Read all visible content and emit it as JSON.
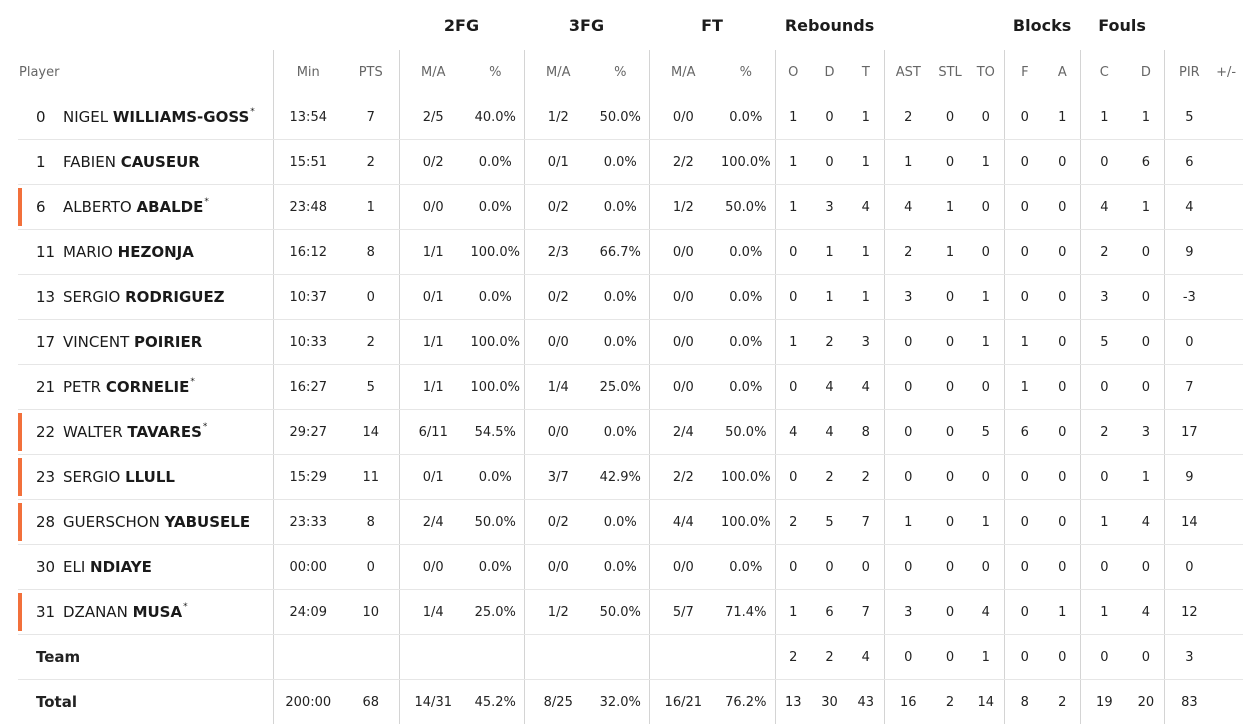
{
  "group_headers": {
    "fg2": "2FG",
    "fg3": "3FG",
    "ft": "FT",
    "rebounds": "Rebounds",
    "blocks": "Blocks",
    "fouls": "Fouls"
  },
  "columns": {
    "player": "Player",
    "min": "Min",
    "pts": "PTS",
    "fg2_ma": "M/A",
    "fg2_pct": "%",
    "fg3_ma": "M/A",
    "fg3_pct": "%",
    "ft_ma": "M/A",
    "ft_pct": "%",
    "reb_o": "O",
    "reb_d": "D",
    "reb_t": "T",
    "ast": "AST",
    "stl": "STL",
    "to": "TO",
    "blk_f": "F",
    "blk_a": "A",
    "foul_c": "C",
    "foul_d": "D",
    "pir": "PIR",
    "plusminus": "+/-"
  },
  "colors": {
    "starter_marker": "#f2703b",
    "divider": "#d4d4d4",
    "row_border": "#e6e6e6"
  },
  "players": [
    {
      "number": "0",
      "first": "NIGEL",
      "last": "WILLIAMS-GOSS",
      "star": "*",
      "marker": false,
      "min": "13:54",
      "pts": "7",
      "fg2_ma": "2/5",
      "fg2_pct": "40.0%",
      "fg3_ma": "1/2",
      "fg3_pct": "50.0%",
      "ft_ma": "0/0",
      "ft_pct": "0.0%",
      "reb_o": "1",
      "reb_d": "0",
      "reb_t": "1",
      "ast": "2",
      "stl": "0",
      "to": "0",
      "blk_f": "0",
      "blk_a": "1",
      "foul_c": "1",
      "foul_d": "1",
      "pir": "5"
    },
    {
      "number": "1",
      "first": "FABIEN",
      "last": "CAUSEUR",
      "star": "",
      "marker": false,
      "min": "15:51",
      "pts": "2",
      "fg2_ma": "0/2",
      "fg2_pct": "0.0%",
      "fg3_ma": "0/1",
      "fg3_pct": "0.0%",
      "ft_ma": "2/2",
      "ft_pct": "100.0%",
      "reb_o": "1",
      "reb_d": "0",
      "reb_t": "1",
      "ast": "1",
      "stl": "0",
      "to": "1",
      "blk_f": "0",
      "blk_a": "0",
      "foul_c": "0",
      "foul_d": "6",
      "pir": "6"
    },
    {
      "number": "6",
      "first": "ALBERTO",
      "last": "ABALDE",
      "star": "*",
      "marker": true,
      "min": "23:48",
      "pts": "1",
      "fg2_ma": "0/0",
      "fg2_pct": "0.0%",
      "fg3_ma": "0/2",
      "fg3_pct": "0.0%",
      "ft_ma": "1/2",
      "ft_pct": "50.0%",
      "reb_o": "1",
      "reb_d": "3",
      "reb_t": "4",
      "ast": "4",
      "stl": "1",
      "to": "0",
      "blk_f": "0",
      "blk_a": "0",
      "foul_c": "4",
      "foul_d": "1",
      "pir": "4"
    },
    {
      "number": "11",
      "first": "MARIO",
      "last": "HEZONJA",
      "star": "",
      "marker": false,
      "min": "16:12",
      "pts": "8",
      "fg2_ma": "1/1",
      "fg2_pct": "100.0%",
      "fg3_ma": "2/3",
      "fg3_pct": "66.7%",
      "ft_ma": "0/0",
      "ft_pct": "0.0%",
      "reb_o": "0",
      "reb_d": "1",
      "reb_t": "1",
      "ast": "2",
      "stl": "1",
      "to": "0",
      "blk_f": "0",
      "blk_a": "0",
      "foul_c": "2",
      "foul_d": "0",
      "pir": "9"
    },
    {
      "number": "13",
      "first": "SERGIO",
      "last": "RODRIGUEZ",
      "star": "",
      "marker": false,
      "min": "10:37",
      "pts": "0",
      "fg2_ma": "0/1",
      "fg2_pct": "0.0%",
      "fg3_ma": "0/2",
      "fg3_pct": "0.0%",
      "ft_ma": "0/0",
      "ft_pct": "0.0%",
      "reb_o": "0",
      "reb_d": "1",
      "reb_t": "1",
      "ast": "3",
      "stl": "0",
      "to": "1",
      "blk_f": "0",
      "blk_a": "0",
      "foul_c": "3",
      "foul_d": "0",
      "pir": "-3"
    },
    {
      "number": "17",
      "first": "VINCENT",
      "last": "POIRIER",
      "star": "",
      "marker": false,
      "min": "10:33",
      "pts": "2",
      "fg2_ma": "1/1",
      "fg2_pct": "100.0%",
      "fg3_ma": "0/0",
      "fg3_pct": "0.0%",
      "ft_ma": "0/0",
      "ft_pct": "0.0%",
      "reb_o": "1",
      "reb_d": "2",
      "reb_t": "3",
      "ast": "0",
      "stl": "0",
      "to": "1",
      "blk_f": "1",
      "blk_a": "0",
      "foul_c": "5",
      "foul_d": "0",
      "pir": "0"
    },
    {
      "number": "21",
      "first": "PETR",
      "last": "CORNELIE",
      "star": "*",
      "marker": false,
      "min": "16:27",
      "pts": "5",
      "fg2_ma": "1/1",
      "fg2_pct": "100.0%",
      "fg3_ma": "1/4",
      "fg3_pct": "25.0%",
      "ft_ma": "0/0",
      "ft_pct": "0.0%",
      "reb_o": "0",
      "reb_d": "4",
      "reb_t": "4",
      "ast": "0",
      "stl": "0",
      "to": "0",
      "blk_f": "1",
      "blk_a": "0",
      "foul_c": "0",
      "foul_d": "0",
      "pir": "7"
    },
    {
      "number": "22",
      "first": "WALTER",
      "last": "TAVARES",
      "star": "*",
      "marker": true,
      "min": "29:27",
      "pts": "14",
      "fg2_ma": "6/11",
      "fg2_pct": "54.5%",
      "fg3_ma": "0/0",
      "fg3_pct": "0.0%",
      "ft_ma": "2/4",
      "ft_pct": "50.0%",
      "reb_o": "4",
      "reb_d": "4",
      "reb_t": "8",
      "ast": "0",
      "stl": "0",
      "to": "5",
      "blk_f": "6",
      "blk_a": "0",
      "foul_c": "2",
      "foul_d": "3",
      "pir": "17"
    },
    {
      "number": "23",
      "first": "SERGIO",
      "last": "LLULL",
      "star": "",
      "marker": true,
      "min": "15:29",
      "pts": "11",
      "fg2_ma": "0/1",
      "fg2_pct": "0.0%",
      "fg3_ma": "3/7",
      "fg3_pct": "42.9%",
      "ft_ma": "2/2",
      "ft_pct": "100.0%",
      "reb_o": "0",
      "reb_d": "2",
      "reb_t": "2",
      "ast": "0",
      "stl": "0",
      "to": "0",
      "blk_f": "0",
      "blk_a": "0",
      "foul_c": "0",
      "foul_d": "1",
      "pir": "9"
    },
    {
      "number": "28",
      "first": "GUERSCHON",
      "last": "YABUSELE",
      "star": "",
      "marker": true,
      "min": "23:33",
      "pts": "8",
      "fg2_ma": "2/4",
      "fg2_pct": "50.0%",
      "fg3_ma": "0/2",
      "fg3_pct": "0.0%",
      "ft_ma": "4/4",
      "ft_pct": "100.0%",
      "reb_o": "2",
      "reb_d": "5",
      "reb_t": "7",
      "ast": "1",
      "stl": "0",
      "to": "1",
      "blk_f": "0",
      "blk_a": "0",
      "foul_c": "1",
      "foul_d": "4",
      "pir": "14"
    },
    {
      "number": "30",
      "first": "ELI",
      "last": "NDIAYE",
      "star": "",
      "marker": false,
      "min": "00:00",
      "pts": "0",
      "fg2_ma": "0/0",
      "fg2_pct": "0.0%",
      "fg3_ma": "0/0",
      "fg3_pct": "0.0%",
      "ft_ma": "0/0",
      "ft_pct": "0.0%",
      "reb_o": "0",
      "reb_d": "0",
      "reb_t": "0",
      "ast": "0",
      "stl": "0",
      "to": "0",
      "blk_f": "0",
      "blk_a": "0",
      "foul_c": "0",
      "foul_d": "0",
      "pir": "0"
    },
    {
      "number": "31",
      "first": "DZANAN",
      "last": "MUSA",
      "star": "*",
      "marker": true,
      "min": "24:09",
      "pts": "10",
      "fg2_ma": "1/4",
      "fg2_pct": "25.0%",
      "fg3_ma": "1/2",
      "fg3_pct": "50.0%",
      "ft_ma": "5/7",
      "ft_pct": "71.4%",
      "reb_o": "1",
      "reb_d": "6",
      "reb_t": "7",
      "ast": "3",
      "stl": "0",
      "to": "4",
      "blk_f": "0",
      "blk_a": "1",
      "foul_c": "1",
      "foul_d": "4",
      "pir": "12"
    }
  ],
  "team_row": {
    "label": "Team",
    "min": "",
    "pts": "",
    "fg2_ma": "",
    "fg2_pct": "",
    "fg3_ma": "",
    "fg3_pct": "",
    "ft_ma": "",
    "ft_pct": "",
    "reb_o": "2",
    "reb_d": "2",
    "reb_t": "4",
    "ast": "0",
    "stl": "0",
    "to": "1",
    "blk_f": "0",
    "blk_a": "0",
    "foul_c": "0",
    "foul_d": "0",
    "pir": "3"
  },
  "total_row": {
    "label": "Total",
    "min": "200:00",
    "pts": "68",
    "fg2_ma": "14/31",
    "fg2_pct": "45.2%",
    "fg3_ma": "8/25",
    "fg3_pct": "32.0%",
    "ft_ma": "16/21",
    "ft_pct": "76.2%",
    "reb_o": "13",
    "reb_d": "30",
    "reb_t": "43",
    "ast": "16",
    "stl": "2",
    "to": "14",
    "blk_f": "8",
    "blk_a": "2",
    "foul_c": "19",
    "foul_d": "20",
    "pir": "83"
  }
}
